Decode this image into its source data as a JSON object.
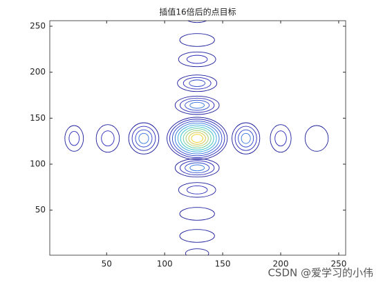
{
  "chart_data": {
    "type": "contour",
    "title": "插值16倍后的点目标",
    "xlim": [
      1,
      256
    ],
    "ylim": [
      1,
      256
    ],
    "xticks": [
      50,
      100,
      150,
      200,
      250
    ],
    "yticks": [
      50,
      100,
      150,
      200,
      250
    ],
    "colormap": [
      "#1c1c9c",
      "#2626b8",
      "#2a44cc",
      "#2f72e0",
      "#2ea2e0",
      "#30c0c4",
      "#5cc896",
      "#9cc862",
      "#d4c240",
      "#f2d21e"
    ],
    "lobes": [
      {
        "x": 128,
        "y": 128,
        "rx": 26,
        "ry": 23,
        "rings": 10
      },
      {
        "x": 22,
        "y": 128,
        "rx": 8,
        "ry": 14,
        "rings": 2
      },
      {
        "x": 51,
        "y": 128,
        "rx": 10,
        "ry": 15,
        "rings": 2
      },
      {
        "x": 82,
        "y": 128,
        "rx": 13,
        "ry": 17,
        "rings": 4
      },
      {
        "x": 170,
        "y": 128,
        "rx": 12,
        "ry": 17,
        "rings": 4
      },
      {
        "x": 200,
        "y": 128,
        "rx": 9,
        "ry": 15,
        "rings": 2
      },
      {
        "x": 231,
        "y": 128,
        "rx": 10,
        "ry": 14,
        "rings": 1
      },
      {
        "x": 128,
        "y": 259,
        "rx": 10,
        "ry": 5,
        "rings": 1
      },
      {
        "x": 128,
        "y": 235,
        "rx": 15,
        "ry": 7,
        "rings": 1
      },
      {
        "x": 128,
        "y": 214,
        "rx": 16,
        "ry": 8,
        "rings": 2
      },
      {
        "x": 128,
        "y": 188,
        "rx": 17,
        "ry": 9,
        "rings": 3
      },
      {
        "x": 128,
        "y": 164,
        "rx": 19,
        "ry": 10,
        "rings": 4
      },
      {
        "x": 128,
        "y": 96,
        "rx": 19,
        "ry": 10,
        "rings": 4
      },
      {
        "x": 128,
        "y": 72,
        "rx": 16,
        "ry": 8,
        "rings": 2
      },
      {
        "x": 128,
        "y": 46,
        "rx": 15,
        "ry": 7,
        "rings": 1
      },
      {
        "x": 128,
        "y": 22,
        "rx": 15,
        "ry": 7,
        "rings": 1
      },
      {
        "x": 128,
        "y": 3,
        "rx": 10,
        "ry": 5,
        "rings": 1
      }
    ],
    "watermark": "CSDN @爱学习的小伟"
  }
}
